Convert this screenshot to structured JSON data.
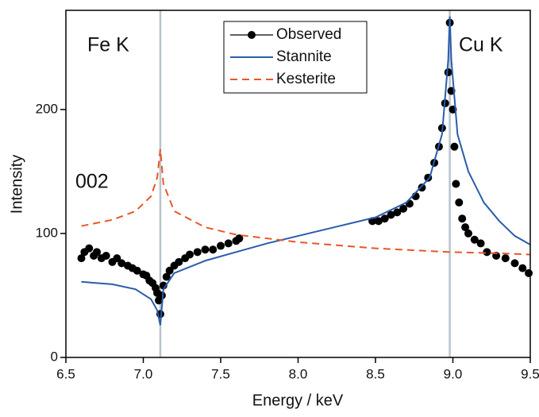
{
  "chart_data": {
    "type": "line",
    "x_label": "Energy / keV",
    "y_label": "Intensity",
    "annotations": [
      "Fe K",
      "Cu K",
      "002"
    ],
    "xlim": [
      6.5,
      9.5
    ],
    "xticks": [
      6.5,
      {
        "value": 7,
        "label": "7.0"
      },
      7.5,
      {
        "value": 8,
        "label": "8.0"
      },
      8.5,
      {
        "value": 9,
        "label": "9.0"
      },
      9.5
    ],
    "ylim": [
      0,
      280
    ],
    "yticks": [
      0,
      100,
      200
    ],
    "vlines": [
      7.11,
      8.98
    ],
    "vline_color": "#b8c4cc",
    "legend": "top-center",
    "series": [
      {
        "name": "Observed",
        "color": "#000000",
        "style": "markers",
        "x": [
          6.6,
          6.62,
          6.65,
          6.68,
          6.7,
          6.73,
          6.76,
          6.8,
          6.83,
          6.86,
          6.9,
          6.93,
          6.96,
          7.0,
          7.02,
          7.04,
          7.06,
          7.08,
          7.09,
          7.1,
          7.11,
          7.12,
          7.13,
          7.15,
          7.17,
          7.2,
          7.23,
          7.27,
          7.3,
          7.35,
          7.4,
          7.45,
          7.5,
          7.55,
          7.6,
          7.62,
          8.48,
          8.52,
          8.56,
          8.6,
          8.64,
          8.68,
          8.72,
          8.76,
          8.8,
          8.84,
          8.88,
          8.91,
          8.93,
          8.95,
          8.97,
          8.98,
          8.99,
          9.0,
          9.01,
          9.02,
          9.04,
          9.06,
          9.08,
          9.1,
          9.14,
          9.18,
          9.22,
          9.28,
          9.34,
          9.4,
          9.45,
          9.49
        ],
        "values": [
          80,
          85,
          88,
          82,
          85,
          80,
          82,
          77,
          80,
          76,
          74,
          72,
          70,
          67,
          66,
          62,
          60,
          56,
          52,
          46,
          35,
          50,
          58,
          65,
          70,
          74,
          77,
          80,
          83,
          85,
          87,
          87,
          90,
          92,
          94,
          96,
          110,
          110,
          112,
          115,
          117,
          120,
          124,
          130,
          137,
          145,
          157,
          170,
          185,
          205,
          230,
          270,
          215,
          200,
          170,
          140,
          125,
          112,
          105,
          100,
          95,
          92,
          85,
          82,
          80,
          76,
          72,
          68
        ]
      },
      {
        "name": "Stannite",
        "color": "#2a5caa",
        "style": "solid",
        "x": [
          6.6,
          6.8,
          6.95,
          7.05,
          7.09,
          7.11,
          7.13,
          7.2,
          7.4,
          7.6,
          7.8,
          8.0,
          8.2,
          8.5,
          8.7,
          8.85,
          8.93,
          8.97,
          8.98,
          8.99,
          9.03,
          9.1,
          9.2,
          9.3,
          9.4,
          9.5
        ],
        "values": [
          61,
          59,
          55,
          47,
          38,
          26,
          55,
          68,
          78,
          85,
          92,
          98,
          104,
          113,
          125,
          145,
          180,
          240,
          275,
          240,
          180,
          150,
          125,
          110,
          98,
          91
        ]
      },
      {
        "name": "Kesterite",
        "color": "#e8572a",
        "style": "dashed",
        "x": [
          6.6,
          6.8,
          6.95,
          7.05,
          7.09,
          7.11,
          7.13,
          7.2,
          7.4,
          7.6,
          8.0,
          8.5,
          8.98,
          9.3,
          9.5
        ],
        "values": [
          106,
          111,
          118,
          130,
          145,
          168,
          140,
          118,
          105,
          99,
          93,
          88,
          85,
          84,
          83
        ]
      }
    ]
  }
}
